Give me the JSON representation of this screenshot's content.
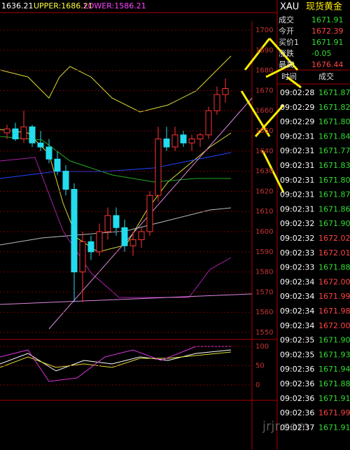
{
  "header": {
    "value": "1636.21",
    "upper": "UPPER:1686.21",
    "lower": "LOWER:1586.21"
  },
  "price_axis": [
    1700,
    1690,
    1680,
    1670,
    1660,
    1650,
    1640,
    1630,
    1620,
    1610,
    1600,
    1590,
    1580,
    1570,
    1560,
    1550
  ],
  "osc_axis": [
    100,
    50,
    0
  ],
  "candles": [
    [
      1649,
      1653,
      1646,
      1651
    ],
    [
      1651,
      1654,
      1645,
      1646
    ],
    [
      1646,
      1660,
      1644,
      1652
    ],
    [
      1652,
      1653,
      1642,
      1644
    ],
    [
      1644,
      1650,
      1640,
      1642
    ],
    [
      1642,
      1646,
      1634,
      1636
    ],
    [
      1636,
      1640,
      1628,
      1630
    ],
    [
      1630,
      1633,
      1618,
      1621
    ],
    [
      1621,
      1624,
      1565,
      1580
    ],
    [
      1580,
      1600,
      1565,
      1595
    ],
    [
      1595,
      1598,
      1586,
      1590
    ],
    [
      1590,
      1604,
      1588,
      1600
    ],
    [
      1600,
      1612,
      1596,
      1608
    ],
    [
      1608,
      1612,
      1598,
      1602
    ],
    [
      1602,
      1606,
      1590,
      1593
    ],
    [
      1593,
      1600,
      1588,
      1596
    ],
    [
      1596,
      1602,
      1592,
      1600
    ],
    [
      1600,
      1620,
      1598,
      1618
    ],
    [
      1618,
      1652,
      1615,
      1646
    ],
    [
      1646,
      1652,
      1640,
      1642
    ],
    [
      1642,
      1652,
      1640,
      1648
    ],
    [
      1648,
      1650,
      1642,
      1644
    ],
    [
      1644,
      1648,
      1640,
      1646
    ],
    [
      1646,
      1649,
      1642,
      1648
    ],
    [
      1648,
      1662,
      1646,
      1660
    ],
    [
      1660,
      1672,
      1658,
      1668
    ],
    [
      1668,
      1676,
      1664,
      1671
    ]
  ],
  "quote": {
    "symbol": "XAU",
    "name": "现货黄金",
    "rows": [
      [
        "成交",
        "1671.91",
        "#33dd33"
      ],
      [
        "今开",
        "1672.39",
        "#ff4444"
      ],
      [
        "买价1",
        "1671.91",
        "#33dd33"
      ],
      [
        "涨跌",
        "-0.05",
        "#33dd33"
      ],
      [
        "最高",
        "1676.44",
        "#ff4444"
      ]
    ]
  },
  "trades": {
    "header": [
      "时间",
      "成交"
    ],
    "rows": [
      [
        "09:02:28",
        "1671.87",
        "#33dd33"
      ],
      [
        "09:02:29",
        "1671.82",
        "#33dd33"
      ],
      [
        "09:02:29",
        "1671.80",
        "#33dd33"
      ],
      [
        "09:02:31",
        "1671.84",
        "#33dd33"
      ],
      [
        "09:02:31",
        "1671.77",
        "#33dd33"
      ],
      [
        "09:02:31",
        "1671.83",
        "#33dd33"
      ],
      [
        "09:02:31",
        "1671.80",
        "#33dd33"
      ],
      [
        "09:02:31",
        "1671.87",
        "#33dd33"
      ],
      [
        "09:02:31",
        "1671.86",
        "#33dd33"
      ],
      [
        "09:02:32",
        "1671.90",
        "#33dd33"
      ],
      [
        "09:02:32",
        "1672.02",
        "#ff4444"
      ],
      [
        "09:02:33",
        "1672.01",
        "#ff4444"
      ],
      [
        "09:02:33",
        "1671.88",
        "#33dd33"
      ],
      [
        "09:02:34",
        "1672.00",
        "#ff4444"
      ],
      [
        "09:02:34",
        "1671.99",
        "#ff4444"
      ],
      [
        "09:02:34",
        "1671.98",
        "#ff4444"
      ],
      [
        "09:02:34",
        "1672.00",
        "#ff4444"
      ],
      [
        "09:02:35",
        "1671.90",
        "#33dd33"
      ],
      [
        "09:02:35",
        "1671.93",
        "#33dd33"
      ],
      [
        "09:02:36",
        "1671.94",
        "#33dd33"
      ],
      [
        "09:02:36",
        "1671.88",
        "#33dd33"
      ],
      [
        "09:02:36",
        "1671.91",
        "#33dd33"
      ],
      [
        "09:02:36",
        "1671.99",
        "#ff4444"
      ],
      [
        "09:02:37",
        "1671.91",
        "#33dd33"
      ]
    ]
  },
  "watermark": "jrjr.com"
}
